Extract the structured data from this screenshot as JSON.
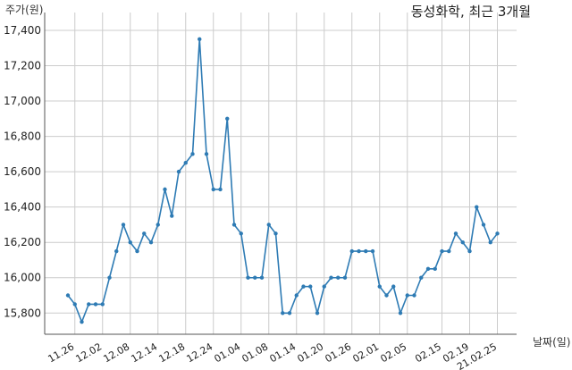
{
  "chart_data": {
    "type": "line",
    "title": "동성화학, 최근 3개월",
    "ylabel": "주가(원)",
    "xlabel": "날짜(일)",
    "ylim": [
      15680,
      17420
    ],
    "yticks": [
      15800,
      16000,
      16200,
      16400,
      16600,
      16800,
      17000,
      17200,
      17400
    ],
    "ytick_labels": [
      "15,800",
      "16,000",
      "16,200",
      "16,400",
      "16,600",
      "16,800",
      "17,000",
      "17,200",
      "17,400"
    ],
    "xticks": [
      {
        "label": "11.26",
        "index": 2
      },
      {
        "label": "12.02",
        "index": 6
      },
      {
        "label": "12.08",
        "index": 10
      },
      {
        "label": "12.14",
        "index": 14
      },
      {
        "label": "12.18",
        "index": 18
      },
      {
        "label": "12.24",
        "index": 22
      },
      {
        "label": "01.04",
        "index": 26
      },
      {
        "label": "01.08",
        "index": 30
      },
      {
        "label": "01.14",
        "index": 34
      },
      {
        "label": "01.20",
        "index": 38
      },
      {
        "label": "01.26",
        "index": 42
      },
      {
        "label": "02.01",
        "index": 46
      },
      {
        "label": "02.05",
        "index": 50
      },
      {
        "label": "02.15",
        "index": 55
      },
      {
        "label": "02.19",
        "index": 59
      },
      {
        "label": "21.02.25",
        "index": 63
      }
    ],
    "grid": true,
    "color": "#2e7bb4",
    "values": [
      15900,
      15850,
      15750,
      15850,
      15850,
      15850,
      16000,
      16150,
      16300,
      16200,
      16150,
      16250,
      16200,
      16300,
      16500,
      16350,
      16600,
      16650,
      16700,
      17350,
      16700,
      16500,
      16500,
      16900,
      16300,
      16250,
      16000,
      16000,
      16000,
      16300,
      16250,
      15800,
      15800,
      15900,
      15950,
      15950,
      15800,
      15950,
      16000,
      16000,
      16000,
      16150,
      16150,
      16150,
      16150,
      15950,
      15900,
      15950,
      15800,
      15900,
      15900,
      16000,
      16050,
      16050,
      16150,
      16150,
      16250,
      16200,
      16150,
      16400,
      16300,
      16200,
      16250
    ]
  }
}
